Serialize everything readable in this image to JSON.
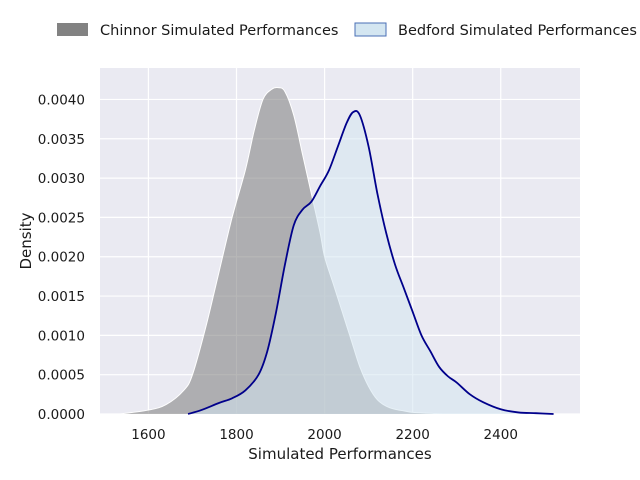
{
  "chart_data": {
    "type": "area",
    "title": "",
    "xlabel": "Simulated Performances",
    "ylabel": "Density",
    "xlim": [
      1490,
      2580
    ],
    "ylim": [
      0,
      0.0044
    ],
    "xticks": [
      1600,
      1800,
      2000,
      2200,
      2400
    ],
    "xtick_labels": [
      "1600",
      "1800",
      "2000",
      "2200",
      "2400"
    ],
    "yticks": [
      0,
      0.0005,
      0.001,
      0.0015,
      0.002,
      0.0025,
      0.003,
      0.0035,
      0.004
    ],
    "ytick_labels": [
      "0.0000",
      "0.0005",
      "0.0010",
      "0.0015",
      "0.0020",
      "0.0025",
      "0.0030",
      "0.0035",
      "0.0040"
    ],
    "grid": true,
    "legend_placement": "top, above plot",
    "background": "#eaeaf2",
    "series": [
      {
        "name": "Chinnor Simulated Performances",
        "fill_color": "#7b7b7b",
        "fill_opacity": 0.55,
        "line_color": "#ffffff",
        "x": [
          1535,
          1600,
          1640,
          1680,
          1700,
          1730,
          1760,
          1790,
          1820,
          1840,
          1860,
          1880,
          1895,
          1910,
          1930,
          1950,
          1970,
          1990,
          2000,
          2020,
          2040,
          2060,
          2080,
          2100,
          2120,
          2140,
          2160,
          2180,
          2200,
          2240,
          2280,
          2320
        ],
        "y": [
          0.0,
          5e-05,
          0.00012,
          0.0003,
          0.0005,
          0.0011,
          0.0018,
          0.0025,
          0.0031,
          0.0036,
          0.004,
          0.00413,
          0.00415,
          0.0041,
          0.0038,
          0.0033,
          0.0028,
          0.0023,
          0.002,
          0.00165,
          0.0013,
          0.00095,
          0.0006,
          0.00035,
          0.00018,
          0.0001,
          6e-05,
          4e-05,
          2e-05,
          1e-05,
          0.0,
          0.0
        ]
      },
      {
        "name": "Bedford Simulated Performances",
        "fill_color": "#d4e6f1",
        "fill_opacity": 0.55,
        "line_color": "#00008b",
        "legend_edge_color": "#4a6fb5",
        "x": [
          1690,
          1720,
          1760,
          1790,
          1820,
          1850,
          1870,
          1890,
          1910,
          1930,
          1950,
          1970,
          1990,
          2010,
          2030,
          2050,
          2065,
          2080,
          2100,
          2120,
          2140,
          2160,
          2180,
          2200,
          2220,
          2240,
          2260,
          2280,
          2300,
          2330,
          2360,
          2400,
          2440,
          2480,
          2520
        ],
        "y": [
          0.0,
          5e-05,
          0.00014,
          0.0002,
          0.0003,
          0.0005,
          0.0008,
          0.0013,
          0.0019,
          0.0024,
          0.0026,
          0.0027,
          0.0029,
          0.0031,
          0.0034,
          0.0037,
          0.00384,
          0.0038,
          0.0034,
          0.0028,
          0.0023,
          0.0019,
          0.0016,
          0.0013,
          0.001,
          0.0008,
          0.0006,
          0.00048,
          0.0004,
          0.00025,
          0.00015,
          6e-05,
          2e-05,
          1e-05,
          0.0
        ]
      }
    ]
  }
}
